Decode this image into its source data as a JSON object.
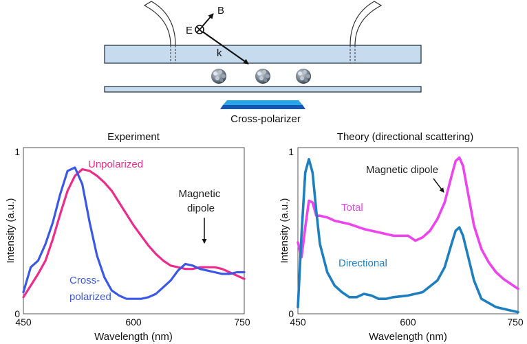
{
  "schematic": {
    "label_B": "B",
    "label_E": "E",
    "label_k": "k",
    "polarizer_label": "Cross-polarizer",
    "colors": {
      "waveguide": "#c7dbef",
      "outline": "#1a2a3a",
      "polarizer_top": "#2aa5e6",
      "polarizer_bottom": "#1356b3"
    }
  },
  "chart_data": [
    {
      "type": "line",
      "title": "Experiment",
      "xlabel": "Wavelength (nm)",
      "ylabel": "Intensity (a.u.)",
      "xlim": [
        450,
        750
      ],
      "ylim": [
        0,
        1
      ],
      "xticks": [
        450,
        600,
        750
      ],
      "yticks": [
        0,
        1
      ],
      "grid": false,
      "series": [
        {
          "name": "Unpolarized",
          "color": "#ee2a8a",
          "x": [
            450,
            460,
            470,
            480,
            490,
            500,
            510,
            520,
            530,
            540,
            550,
            560,
            570,
            580,
            590,
            600,
            610,
            620,
            630,
            640,
            650,
            660,
            670,
            680,
            690,
            700,
            710,
            720,
            730,
            740,
            750
          ],
          "y": [
            0.1,
            0.17,
            0.24,
            0.32,
            0.45,
            0.6,
            0.74,
            0.83,
            0.87,
            0.86,
            0.83,
            0.79,
            0.74,
            0.67,
            0.6,
            0.53,
            0.47,
            0.41,
            0.36,
            0.32,
            0.29,
            0.28,
            0.27,
            0.27,
            0.28,
            0.28,
            0.28,
            0.27,
            0.25,
            0.23,
            0.21
          ]
        },
        {
          "name": "Cross-\npolarized",
          "color": "#3a58e8",
          "x": [
            450,
            460,
            470,
            480,
            490,
            500,
            510,
            520,
            530,
            540,
            550,
            560,
            570,
            580,
            590,
            600,
            610,
            620,
            630,
            640,
            650,
            660,
            670,
            680,
            690,
            700,
            710,
            720,
            730,
            740,
            750
          ],
          "y": [
            0.13,
            0.28,
            0.32,
            0.42,
            0.55,
            0.72,
            0.86,
            0.88,
            0.78,
            0.55,
            0.35,
            0.22,
            0.14,
            0.11,
            0.09,
            0.09,
            0.09,
            0.1,
            0.12,
            0.16,
            0.2,
            0.26,
            0.3,
            0.29,
            0.27,
            0.26,
            0.25,
            0.24,
            0.24,
            0.25,
            0.25
          ]
        }
      ],
      "annotations": [
        {
          "text": "Unpolarized",
          "color": "#ee2a8a"
        },
        {
          "text": "Cross-\npolarized",
          "color": "#3a58e8"
        },
        {
          "text": "Magnetic\ndipole",
          "color": "#222222"
        }
      ]
    },
    {
      "type": "line",
      "title": "Theory (directional scattering)",
      "xlabel": "Wavelength (nm)",
      "ylabel": "Intensity (a.u.)",
      "xlim": [
        450,
        750
      ],
      "ylim": [
        0,
        1
      ],
      "xticks": [
        450,
        600,
        750
      ],
      "yticks": [
        0,
        1
      ],
      "grid": false,
      "series": [
        {
          "name": "Total",
          "color": "#ee44ee",
          "x": [
            450,
            455,
            460,
            465,
            470,
            475,
            480,
            490,
            500,
            520,
            540,
            560,
            580,
            600,
            610,
            620,
            630,
            640,
            650,
            660,
            665,
            670,
            675,
            680,
            690,
            700,
            710,
            720,
            730,
            740,
            750
          ],
          "y": [
            0.43,
            0.34,
            0.52,
            0.68,
            0.67,
            0.59,
            0.59,
            0.58,
            0.56,
            0.54,
            0.51,
            0.49,
            0.47,
            0.47,
            0.44,
            0.46,
            0.5,
            0.57,
            0.67,
            0.84,
            0.92,
            0.94,
            0.89,
            0.77,
            0.53,
            0.39,
            0.31,
            0.25,
            0.21,
            0.18,
            0.15
          ]
        },
        {
          "name": "Directional",
          "color": "#1e7fc0",
          "x": [
            450,
            455,
            460,
            465,
            470,
            475,
            480,
            490,
            500,
            510,
            520,
            530,
            540,
            550,
            560,
            570,
            580,
            600,
            620,
            640,
            650,
            660,
            665,
            670,
            675,
            680,
            690,
            700,
            720,
            740,
            750
          ],
          "y": [
            0.04,
            0.48,
            0.85,
            0.93,
            0.85,
            0.62,
            0.42,
            0.25,
            0.17,
            0.13,
            0.1,
            0.1,
            0.12,
            0.11,
            0.09,
            0.09,
            0.1,
            0.11,
            0.13,
            0.2,
            0.28,
            0.43,
            0.5,
            0.52,
            0.47,
            0.38,
            0.2,
            0.09,
            0.04,
            0.02,
            0.01
          ]
        }
      ],
      "annotations": [
        {
          "text": "Magnetic dipole",
          "color": "#222222"
        },
        {
          "text": "Total",
          "color": "#ee44ee"
        },
        {
          "text": "Directional",
          "color": "#1e7fc0"
        }
      ]
    }
  ]
}
